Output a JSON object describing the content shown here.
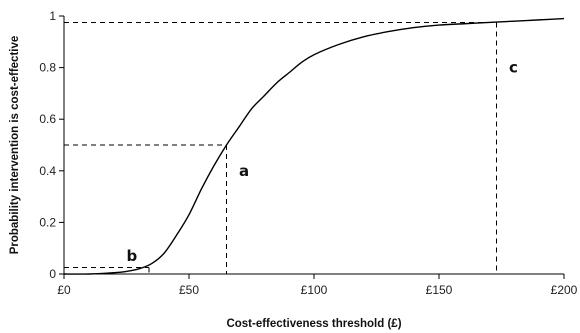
{
  "chart_data": {
    "type": "line",
    "xlabel": "Cost-effectiveness threshold (£)",
    "ylabel": "Probability intervention is cost-effective",
    "xlim": [
      0,
      200
    ],
    "ylim": [
      0,
      1
    ],
    "x_ticks": [
      0,
      50,
      100,
      150,
      200
    ],
    "x_tick_labels": [
      "£0",
      "£50",
      "£100",
      "£150",
      "£200"
    ],
    "y_ticks": [
      0,
      0.2,
      0.4,
      0.6,
      0.8,
      1
    ],
    "y_tick_labels": [
      "0",
      "0.2",
      "0.4",
      "0.6",
      "0.8",
      "1"
    ],
    "grid": false,
    "series": [
      {
        "x": [
          0,
          10,
          20,
          25,
          30,
          35,
          40,
          45,
          50,
          55,
          60,
          65,
          70,
          75,
          80,
          85,
          90,
          95,
          100,
          110,
          120,
          130,
          140,
          150,
          160,
          170,
          180,
          190,
          200
        ],
        "y": [
          0,
          0,
          0.005,
          0.01,
          0.02,
          0.04,
          0.08,
          0.15,
          0.23,
          0.33,
          0.42,
          0.5,
          0.57,
          0.64,
          0.69,
          0.74,
          0.78,
          0.82,
          0.85,
          0.89,
          0.92,
          0.94,
          0.955,
          0.965,
          0.97,
          0.975,
          0.98,
          0.985,
          0.99
        ]
      }
    ],
    "annotations": [
      {
        "label": "a",
        "x": 65,
        "y": 0.5,
        "text_x": 70,
        "text_y": 0.4
      },
      {
        "label": "b",
        "x": 34,
        "y": 0.025,
        "text_x": 25,
        "text_y": 0.07
      },
      {
        "label": "c",
        "x": 173,
        "y": 0.975,
        "text_x": 178,
        "text_y": 0.8
      }
    ]
  }
}
